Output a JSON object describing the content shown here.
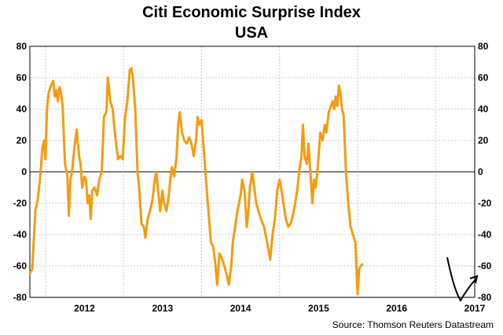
{
  "chart_data": {
    "type": "line",
    "title": "Citi Economic Surprise Index",
    "subtitle": "USA",
    "source": "Source: Thomson Reuters Datastream",
    "ylim": [
      -80,
      80
    ],
    "y_ticks": [
      "80",
      "60",
      "40",
      "20",
      "0",
      "-20",
      "-40",
      "-60",
      "-80"
    ],
    "x_labels": [
      "2012",
      "2013",
      "2014",
      "2015",
      "2016",
      "2017"
    ],
    "xlim": [
      2011.8,
      2017.5
    ],
    "grid": true,
    "line_color": "#f39c12",
    "annotation": "hand-drawn black arrow marking the early-2017 trough and rebound",
    "series": [
      {
        "values": [
          [
            2011.8,
            -65
          ],
          [
            2011.83,
            -62
          ],
          [
            2011.87,
            -25
          ],
          [
            2011.9,
            -18
          ],
          [
            2011.93,
            -5
          ],
          [
            2011.96,
            15
          ],
          [
            2011.98,
            20
          ],
          [
            2012.0,
            8
          ],
          [
            2012.02,
            40
          ],
          [
            2012.04,
            50
          ],
          [
            2012.07,
            55
          ],
          [
            2012.1,
            58
          ],
          [
            2012.12,
            48
          ],
          [
            2012.14,
            52
          ],
          [
            2012.16,
            45
          ],
          [
            2012.18,
            54
          ],
          [
            2012.2,
            50
          ],
          [
            2012.22,
            42
          ],
          [
            2012.25,
            5
          ],
          [
            2012.28,
            -2
          ],
          [
            2012.3,
            -28
          ],
          [
            2012.32,
            -5
          ],
          [
            2012.34,
            0
          ],
          [
            2012.37,
            15
          ],
          [
            2012.4,
            27
          ],
          [
            2012.43,
            10
          ],
          [
            2012.45,
            5
          ],
          [
            2012.47,
            -10
          ],
          [
            2012.5,
            -3
          ],
          [
            2012.52,
            -5
          ],
          [
            2012.54,
            -20
          ],
          [
            2012.56,
            -15
          ],
          [
            2012.58,
            -30
          ],
          [
            2012.6,
            -12
          ],
          [
            2012.63,
            -10
          ],
          [
            2012.66,
            -15
          ],
          [
            2012.69,
            -5
          ],
          [
            2012.72,
            0
          ],
          [
            2012.75,
            35
          ],
          [
            2012.78,
            38
          ],
          [
            2012.8,
            60
          ],
          [
            2012.83,
            45
          ],
          [
            2012.86,
            40
          ],
          [
            2012.88,
            30
          ],
          [
            2012.9,
            20
          ],
          [
            2012.93,
            8
          ],
          [
            2012.96,
            10
          ],
          [
            2012.99,
            8
          ],
          [
            2013.02,
            35
          ],
          [
            2013.05,
            45
          ],
          [
            2013.08,
            65
          ],
          [
            2013.1,
            66
          ],
          [
            2013.12,
            60
          ],
          [
            2013.15,
            40
          ],
          [
            2013.18,
            0
          ],
          [
            2013.2,
            -10
          ],
          [
            2013.23,
            -33
          ],
          [
            2013.26,
            -35
          ],
          [
            2013.28,
            -42
          ],
          [
            2013.31,
            -30
          ],
          [
            2013.34,
            -25
          ],
          [
            2013.37,
            -18
          ],
          [
            2013.4,
            -5
          ],
          [
            2013.42,
            0
          ],
          [
            2013.45,
            -15
          ],
          [
            2013.47,
            -25
          ],
          [
            2013.5,
            -12
          ],
          [
            2013.52,
            -20
          ],
          [
            2013.55,
            -25
          ],
          [
            2013.58,
            -15
          ],
          [
            2013.6,
            -5
          ],
          [
            2013.62,
            3
          ],
          [
            2013.65,
            -3
          ],
          [
            2013.68,
            10
          ],
          [
            2013.7,
            30
          ],
          [
            2013.72,
            38
          ],
          [
            2013.75,
            25
          ],
          [
            2013.78,
            20
          ],
          [
            2013.81,
            18
          ],
          [
            2013.84,
            22
          ],
          [
            2013.87,
            18
          ],
          [
            2013.9,
            10
          ],
          [
            2013.93,
            20
          ],
          [
            2013.95,
            35
          ],
          [
            2013.97,
            30
          ],
          [
            2014.0,
            33
          ],
          [
            2014.05,
            0
          ],
          [
            2014.08,
            -20
          ],
          [
            2014.12,
            -45
          ],
          [
            2014.15,
            -48
          ],
          [
            2014.18,
            -60
          ],
          [
            2014.2,
            -72
          ],
          [
            2014.23,
            -52
          ],
          [
            2014.26,
            -55
          ],
          [
            2014.29,
            -60
          ],
          [
            2014.32,
            -65
          ],
          [
            2014.35,
            -72
          ],
          [
            2014.38,
            -60
          ],
          [
            2014.4,
            -45
          ],
          [
            2014.43,
            -35
          ],
          [
            2014.46,
            -25
          ],
          [
            2014.48,
            -20
          ],
          [
            2014.5,
            -15
          ],
          [
            2014.52,
            -5
          ],
          [
            2014.55,
            -12
          ],
          [
            2014.58,
            -35
          ],
          [
            2014.6,
            -25
          ],
          [
            2014.62,
            -10
          ],
          [
            2014.65,
            0
          ],
          [
            2014.67,
            -8
          ],
          [
            2014.7,
            -20
          ],
          [
            2014.73,
            -25
          ],
          [
            2014.76,
            -30
          ],
          [
            2014.8,
            -35
          ],
          [
            2014.84,
            -45
          ],
          [
            2014.88,
            -56
          ],
          [
            2014.91,
            -40
          ],
          [
            2014.94,
            -30
          ],
          [
            2014.97,
            -12
          ],
          [
            2015.0,
            -5
          ],
          [
            2015.02,
            -10
          ],
          [
            2015.05,
            -20
          ],
          [
            2015.08,
            -30
          ],
          [
            2015.11,
            -35
          ],
          [
            2015.14,
            -33
          ],
          [
            2015.17,
            -28
          ],
          [
            2015.2,
            -20
          ],
          [
            2015.23,
            -10
          ],
          [
            2015.25,
            0
          ],
          [
            2015.28,
            10
          ],
          [
            2015.3,
            30
          ],
          [
            2015.32,
            10
          ],
          [
            2015.35,
            5
          ],
          [
            2015.37,
            18
          ],
          [
            2015.4,
            -5
          ],
          [
            2015.42,
            -20
          ],
          [
            2015.44,
            -5
          ],
          [
            2015.46,
            -10
          ],
          [
            2015.48,
            -2
          ],
          [
            2015.5,
            10
          ],
          [
            2015.52,
            25
          ],
          [
            2015.55,
            20
          ],
          [
            2015.58,
            30
          ],
          [
            2015.6,
            25
          ],
          [
            2015.63,
            38
          ],
          [
            2015.66,
            42
          ],
          [
            2015.68,
            45
          ],
          [
            2015.7,
            40
          ],
          [
            2015.72,
            48
          ],
          [
            2015.74,
            42
          ],
          [
            2015.76,
            55
          ],
          [
            2015.78,
            50
          ],
          [
            2015.8,
            40
          ],
          [
            2015.82,
            36
          ],
          [
            2015.85,
            0
          ],
          [
            2015.88,
            -20
          ],
          [
            2015.91,
            -35
          ],
          [
            2015.94,
            -40
          ],
          [
            2015.97,
            -45
          ],
          [
            2016.0,
            -78
          ],
          [
            2016.02,
            -62
          ],
          [
            2016.04,
            -60
          ],
          [
            2016.06,
            -59
          ]
        ]
      }
    ]
  }
}
